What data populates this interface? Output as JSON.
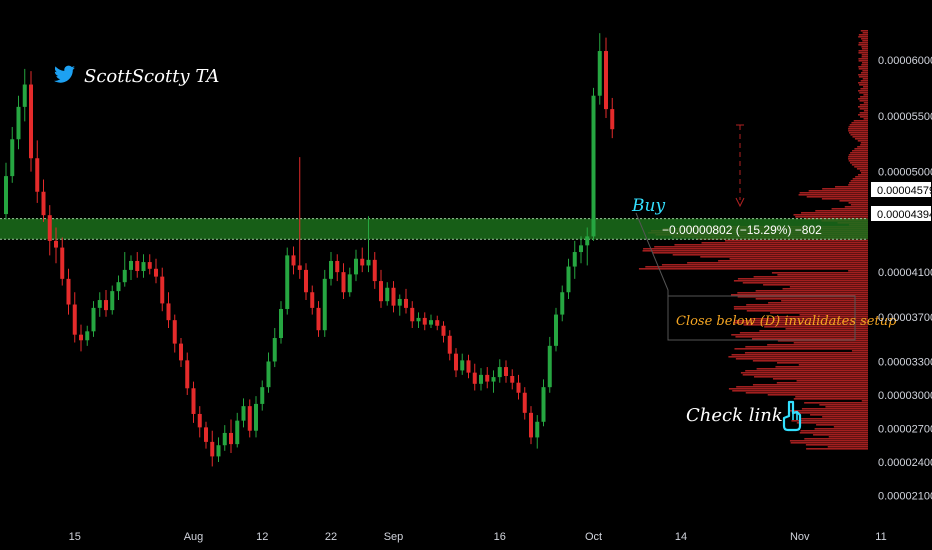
{
  "brand": {
    "author": "ScottScotty TA",
    "icon": "twitter-bird-icon",
    "icon_color": "#1da1f2"
  },
  "annotations": {
    "buy_label": "Buy",
    "measure_text": "−0.00000802 (−15.29%) −802",
    "invalidation_note": "Close below (D) invalidates setup",
    "check_link_label": "Check link",
    "hand_icon": "pointing-hand-icon"
  },
  "price_labels": {
    "upper_zone": "0.00004579",
    "lower_zone": "0.00004394"
  },
  "colors": {
    "up": "#26a641",
    "down": "#e52b2b",
    "zone_fill": "#1b6e1b",
    "zone_line": "#9ccc9c",
    "volume_profile": "#b22222",
    "buy_text": "#33e0ff",
    "note_text": "#f5a623",
    "tag_bg": "#ffffff"
  },
  "chart_data": {
    "type": "candlestick",
    "x_ticks": [
      "15",
      "Aug",
      "12",
      "22",
      "Sep",
      "16",
      "Oct",
      "14",
      "Nov",
      "11"
    ],
    "y_ticks": [
      "0.00006000",
      "0.00005500",
      "0.00005000",
      "0.00004100",
      "0.00003700",
      "0.00003300",
      "0.00003000",
      "0.00002700",
      "0.00002400",
      "0.00002100"
    ],
    "ylim": [
      1.97e-05,
      6.34e-05
    ],
    "demand_zone": [
      4.394e-05,
      4.579e-05
    ],
    "volume_profile": true,
    "candles": [
      [
        4.62e-05,
        5.08e-05,
        4.57e-05,
        4.96e-05
      ],
      [
        4.96e-05,
        5.4e-05,
        4.9e-05,
        5.29e-05
      ],
      [
        5.29e-05,
        5.68e-05,
        5.2e-05,
        5.58e-05
      ],
      [
        5.58e-05,
        5.92e-05,
        5.45e-05,
        5.78e-05
      ],
      [
        5.78e-05,
        5.9e-05,
        5e-05,
        5.12e-05
      ],
      [
        5.12e-05,
        5.28e-05,
        4.72e-05,
        4.82e-05
      ],
      [
        4.82e-05,
        4.93e-05,
        4.55e-05,
        4.61e-05
      ],
      [
        4.61e-05,
        4.7e-05,
        4.25e-05,
        4.38e-05
      ],
      [
        4.38e-05,
        4.5e-05,
        4.18e-05,
        4.32e-05
      ],
      [
        4.32e-05,
        4.41e-05,
        3.98e-05,
        4.04e-05
      ],
      [
        4.04e-05,
        4.13e-05,
        3.72e-05,
        3.81e-05
      ],
      [
        3.81e-05,
        3.92e-05,
        3.47e-05,
        3.54e-05
      ],
      [
        3.54e-05,
        3.63e-05,
        3.39e-05,
        3.49e-05
      ],
      [
        3.49e-05,
        3.62e-05,
        3.44e-05,
        3.57e-05
      ],
      [
        3.57e-05,
        3.84e-05,
        3.52e-05,
        3.78e-05
      ],
      [
        3.78e-05,
        3.92e-05,
        3.7e-05,
        3.85e-05
      ],
      [
        3.85e-05,
        3.94e-05,
        3.7e-05,
        3.76e-05
      ],
      [
        3.76e-05,
        3.98e-05,
        3.72e-05,
        3.93e-05
      ],
      [
        3.93e-05,
        4.07e-05,
        3.85e-05,
        4.01e-05
      ],
      [
        4.01e-05,
        4.28e-05,
        3.97e-05,
        4.12e-05
      ],
      [
        4.12e-05,
        4.25e-05,
        4.03e-05,
        4.2e-05
      ],
      [
        4.2e-05,
        4.28e-05,
        4.05e-05,
        4.11e-05
      ],
      [
        4.11e-05,
        4.26e-05,
        4.05e-05,
        4.19e-05
      ],
      [
        4.19e-05,
        4.26e-05,
        4.08e-05,
        4.13e-05
      ],
      [
        4.13e-05,
        4.22e-05,
        4e-05,
        4.06e-05
      ],
      [
        4.06e-05,
        4.14e-05,
        3.75e-05,
        3.82e-05
      ],
      [
        3.82e-05,
        3.92e-05,
        3.6e-05,
        3.67e-05
      ],
      [
        3.67e-05,
        3.72e-05,
        3.38e-05,
        3.46e-05
      ],
      [
        3.46e-05,
        3.51e-05,
        3.25e-05,
        3.31e-05
      ],
      [
        3.31e-05,
        3.38e-05,
        3e-05,
        3.06e-05
      ],
      [
        3.06e-05,
        3.12e-05,
        2.75e-05,
        2.83e-05
      ],
      [
        2.83e-05,
        2.9e-05,
        2.62e-05,
        2.71e-05
      ],
      [
        2.71e-05,
        2.76e-05,
        2.52e-05,
        2.58e-05
      ],
      [
        2.58e-05,
        2.68e-05,
        2.36e-05,
        2.45e-05
      ],
      [
        2.45e-05,
        2.62e-05,
        2.4e-05,
        2.55e-05
      ],
      [
        2.55e-05,
        2.73e-05,
        2.5e-05,
        2.66e-05
      ],
      [
        2.66e-05,
        2.78e-05,
        2.48e-05,
        2.56e-05
      ],
      [
        2.56e-05,
        2.84e-05,
        2.53e-05,
        2.77e-05
      ],
      [
        2.77e-05,
        2.97e-05,
        2.71e-05,
        2.9e-05
      ],
      [
        2.9e-05,
        2.96e-05,
        2.62e-05,
        2.68e-05
      ],
      [
        2.68e-05,
        2.99e-05,
        2.62e-05,
        2.92e-05
      ],
      [
        2.92e-05,
        3.13e-05,
        2.86e-05,
        3.07e-05
      ],
      [
        3.07e-05,
        3.38e-05,
        3.02e-05,
        3.3e-05
      ],
      [
        3.3e-05,
        3.6e-05,
        3.25e-05,
        3.51e-05
      ],
      [
        3.51e-05,
        3.84e-05,
        3.46e-05,
        3.77e-05
      ],
      [
        3.77e-05,
        4.32e-05,
        3.72e-05,
        4.25e-05
      ],
      [
        4.25e-05,
        4.33e-05,
        4.08e-05,
        4.16e-05
      ],
      [
        4.16e-05,
        5.13e-05,
        4.04e-05,
        4.12e-05
      ],
      [
        4.12e-05,
        4.18e-05,
        3.85e-05,
        3.92e-05
      ],
      [
        3.92e-05,
        3.98e-05,
        3.72e-05,
        3.78e-05
      ],
      [
        3.78e-05,
        3.84e-05,
        3.52e-05,
        3.58e-05
      ],
      [
        3.58e-05,
        4.12e-05,
        3.52e-05,
        4.04e-05
      ],
      [
        4.04e-05,
        4.28e-05,
        3.98e-05,
        4.2e-05
      ],
      [
        4.2e-05,
        4.26e-05,
        4.02e-05,
        4.1e-05
      ],
      [
        4.1e-05,
        4.18e-05,
        3.86e-05,
        3.92e-05
      ],
      [
        3.92e-05,
        4.14e-05,
        3.88e-05,
        4.08e-05
      ],
      [
        4.08e-05,
        4.3e-05,
        4.02e-05,
        4.22e-05
      ],
      [
        4.22e-05,
        4.32e-05,
        4.1e-05,
        4.16e-05
      ],
      [
        4.16e-05,
        4.6e-05,
        4.1e-05,
        4.21e-05
      ],
      [
        4.21e-05,
        4.28e-05,
        3.95e-05,
        4.02e-05
      ],
      [
        4.02e-05,
        4.12e-05,
        3.78e-05,
        3.84e-05
      ],
      [
        3.84e-05,
        4.01e-05,
        3.8e-05,
        3.96e-05
      ],
      [
        3.96e-05,
        4.02e-05,
        3.74e-05,
        3.8e-05
      ],
      [
        3.8e-05,
        3.9e-05,
        3.71e-05,
        3.86e-05
      ],
      [
        3.86e-05,
        3.95e-05,
        3.73e-05,
        3.78e-05
      ],
      [
        3.78e-05,
        3.84e-05,
        3.6e-05,
        3.66e-05
      ],
      [
        3.66e-05,
        3.74e-05,
        3.6e-05,
        3.69e-05
      ],
      [
        3.69e-05,
        3.74e-05,
        3.58e-05,
        3.63e-05
      ],
      [
        3.63e-05,
        3.72e-05,
        3.6e-05,
        3.67e-05
      ],
      [
        3.67e-05,
        3.71e-05,
        3.58e-05,
        3.62e-05
      ],
      [
        3.62e-05,
        3.66e-05,
        3.47e-05,
        3.53e-05
      ],
      [
        3.53e-05,
        3.58e-05,
        3.31e-05,
        3.37e-05
      ],
      [
        3.37e-05,
        3.42e-05,
        3.16e-05,
        3.22e-05
      ],
      [
        3.22e-05,
        3.37e-05,
        3.18e-05,
        3.31e-05
      ],
      [
        3.31e-05,
        3.36e-05,
        3.15e-05,
        3.2e-05
      ],
      [
        3.2e-05,
        3.28e-05,
        3.04e-05,
        3.1e-05
      ],
      [
        3.1e-05,
        3.24e-05,
        3.04e-05,
        3.18e-05
      ],
      [
        3.18e-05,
        3.25e-05,
        3.06e-05,
        3.12e-05
      ],
      [
        3.12e-05,
        3.22e-05,
        3.02e-05,
        3.16e-05
      ],
      [
        3.16e-05,
        3.32e-05,
        3.11e-05,
        3.25e-05
      ],
      [
        3.25e-05,
        3.31e-05,
        3.11e-05,
        3.17e-05
      ],
      [
        3.17e-05,
        3.23e-05,
        3.05e-05,
        3.11e-05
      ],
      [
        3.11e-05,
        3.18e-05,
        2.96e-05,
        3.02e-05
      ],
      [
        3.02e-05,
        3.07e-05,
        2.78e-05,
        2.84e-05
      ],
      [
        2.84e-05,
        2.9e-05,
        2.56e-05,
        2.62e-05
      ],
      [
        2.62e-05,
        2.82e-05,
        2.52e-05,
        2.76e-05
      ],
      [
        2.76e-05,
        3.14e-05,
        2.72e-05,
        3.07e-05
      ],
      [
        3.07e-05,
        3.52e-05,
        3.02e-05,
        3.44e-05
      ],
      [
        3.44e-05,
        3.78e-05,
        3.39e-05,
        3.72e-05
      ],
      [
        3.72e-05,
        3.98e-05,
        3.66e-05,
        3.92e-05
      ],
      [
        3.92e-05,
        4.22e-05,
        3.86e-05,
        4.15e-05
      ],
      [
        4.15e-05,
        4.38e-05,
        4.04e-05,
        4.28e-05
      ],
      [
        4.28e-05,
        4.42e-05,
        4.18e-05,
        4.34e-05
      ],
      [
        4.34e-05,
        4.5e-05,
        4.16e-05,
        4.42e-05
      ],
      [
        4.42e-05,
        5.75e-05,
        4.38e-05,
        5.68e-05
      ],
      [
        5.68e-05,
        6.24e-05,
        5.6e-05,
        6.08e-05
      ],
      [
        6.08e-05,
        6.2e-05,
        5.48e-05,
        5.56e-05
      ],
      [
        5.56e-05,
        5.66e-05,
        5.3e-05,
        5.38e-05
      ]
    ]
  }
}
